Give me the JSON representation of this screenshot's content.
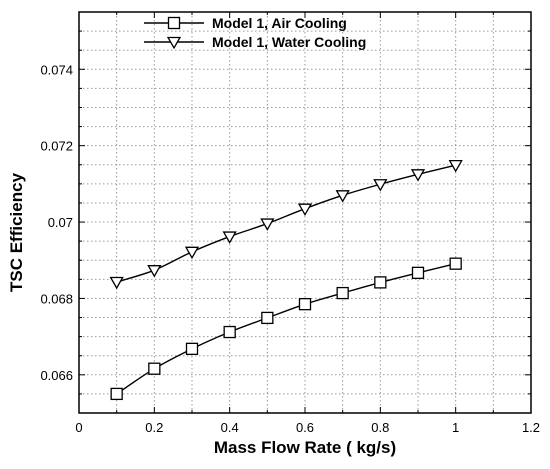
{
  "chart_data": {
    "type": "line",
    "title": "",
    "xlabel": "Mass Flow Rate ( kg/s)",
    "ylabel": "TSC Efficiency",
    "xlim": [
      0,
      1.2
    ],
    "ylim": [
      0.065,
      0.0755
    ],
    "x_ticks": [
      0,
      0.2,
      0.4,
      0.6,
      0.8,
      1,
      1.2
    ],
    "x_tick_labels": [
      "0",
      "0.2",
      "0.4",
      "0.6",
      "0.8",
      "1",
      "1.2"
    ],
    "y_ticks": [
      0.066,
      0.068,
      0.07,
      0.072,
      0.074
    ],
    "y_tick_labels": [
      "0.066",
      "0.068",
      "0.07",
      "0.072",
      "0.074"
    ],
    "grid": true,
    "legend_position": "top-center",
    "x": [
      0.1,
      0.2,
      0.3,
      0.4,
      0.5,
      0.6,
      0.7,
      0.8,
      0.9,
      1.0
    ],
    "series": [
      {
        "name": "Model 1, Air Cooling",
        "marker": "square",
        "values": [
          0.0655,
          0.06616,
          0.06668,
          0.06712,
          0.06749,
          0.06785,
          0.06814,
          0.06842,
          0.06867,
          0.06891
        ]
      },
      {
        "name": "Model 1, Water Cooling",
        "marker": "triangle-down",
        "values": [
          0.06843,
          0.06874,
          0.06922,
          0.06962,
          0.06996,
          0.07035,
          0.0707,
          0.07099,
          0.07125,
          0.07149
        ]
      }
    ]
  }
}
